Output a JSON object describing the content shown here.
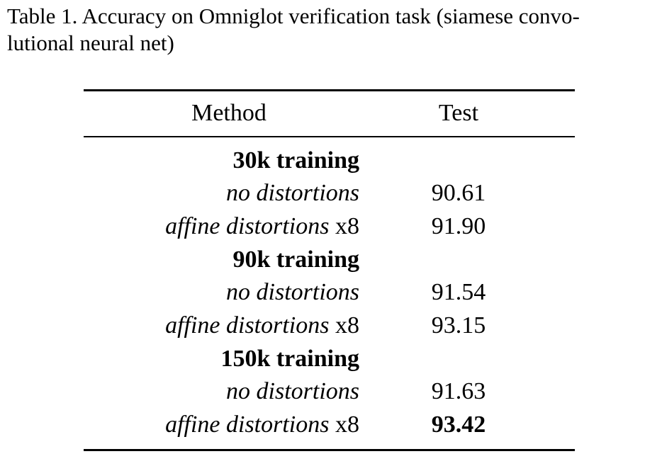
{
  "caption": {
    "line1": "Table 1. Accuracy on Omniglot verification task (siamese convo-",
    "line2": "lutional neural net)"
  },
  "table": {
    "headers": {
      "method": "Method",
      "test": "Test"
    },
    "groups": [
      {
        "label": "30k training",
        "rows": [
          {
            "method": "no distortions",
            "suffix": "",
            "test": "90.61",
            "best": false
          },
          {
            "method": "affine distortions",
            "suffix": " x8",
            "test": "91.90",
            "best": false
          }
        ]
      },
      {
        "label": "90k training",
        "rows": [
          {
            "method": "no distortions",
            "suffix": "",
            "test": "91.54",
            "best": false
          },
          {
            "method": "affine distortions",
            "suffix": " x8",
            "test": "93.15",
            "best": false
          }
        ]
      },
      {
        "label": "150k training",
        "rows": [
          {
            "method": "no distortions",
            "suffix": "",
            "test": "91.63",
            "best": false
          },
          {
            "method": "affine distortions",
            "suffix": " x8",
            "test": "93.42",
            "best": true
          }
        ]
      }
    ]
  }
}
